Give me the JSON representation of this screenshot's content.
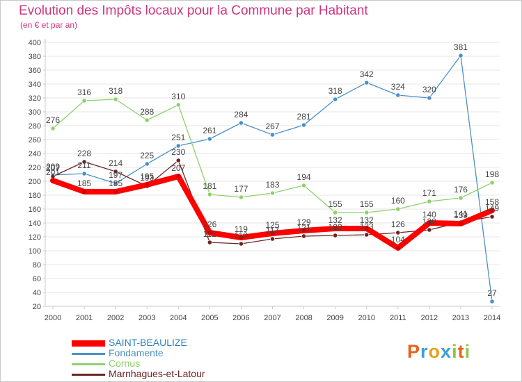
{
  "header": {
    "title": "Evolution des Impôts locaux pour la Commune par Habitant",
    "subtitle": "(en € et par an)"
  },
  "logo": {
    "letters": [
      "P",
      "r",
      "o",
      "x",
      "i",
      "t",
      "i"
    ],
    "colors": [
      "#e8621a",
      "#3aa0da",
      "#e8a21a",
      "#3aa0da",
      "#8cc63f",
      "#e8621a",
      "#8cc63f"
    ]
  },
  "colors": {
    "title": "#d1347e",
    "axis": "#c8c8c8",
    "grid": "#e6e6e6",
    "tick_label": "#444444",
    "value_label": "#444444"
  },
  "chart_data": {
    "type": "line",
    "x": [
      "2000",
      "2001",
      "2002",
      "2003",
      "2004",
      "2005",
      "2006",
      "2007",
      "2008",
      "2009",
      "2010",
      "2011",
      "2012",
      "2013",
      "2014"
    ],
    "ylim": [
      20,
      400
    ],
    "yticks": [
      20,
      40,
      60,
      80,
      100,
      120,
      140,
      160,
      180,
      200,
      220,
      240,
      260,
      280,
      300,
      320,
      340,
      360,
      380,
      400
    ],
    "grid": "horizontal",
    "legend_position": "bottom-left",
    "series": [
      {
        "name": "SAINT-BEAULIZE",
        "color": "#ff0000",
        "values": [
          201,
          185,
          185,
          195,
          207,
          126,
          119,
          125,
          129,
          132,
          132,
          104,
          140,
          139,
          158
        ],
        "labels": [
          "201",
          "185",
          "185",
          "195",
          "207",
          "126",
          "119",
          "125",
          "129",
          "132",
          "132",
          "104",
          "140",
          "139",
          "158"
        ],
        "thick": true
      },
      {
        "name": "Fondamente",
        "color": "#4b90c8",
        "values": [
          209,
          211,
          197,
          225,
          251,
          261,
          284,
          267,
          281,
          318,
          342,
          324,
          320,
          381,
          27
        ],
        "labels": [
          "209",
          "211",
          "197",
          "225",
          "251",
          "261",
          "284",
          "267",
          "281",
          "318",
          "342",
          "324",
          "320",
          "381",
          "27"
        ]
      },
      {
        "name": "Cornus",
        "color": "#8ed16a",
        "values": [
          276,
          316,
          318,
          288,
          310,
          181,
          177,
          183,
          194,
          155,
          155,
          160,
          171,
          176,
          198
        ],
        "labels": [
          "276",
          "316",
          "318",
          "288",
          "310",
          "181",
          "177",
          "183",
          "194",
          "155",
          "155",
          "160",
          "171",
          "176",
          "198"
        ]
      },
      {
        "name": "Marnhagues-et-Latour",
        "color": "#6e2424",
        "values": [
          207,
          228,
          214,
          193,
          230,
          112,
          110,
          117,
          121,
          122,
          123,
          126,
          130,
          141,
          149
        ],
        "labels": [
          "207",
          "228",
          "214",
          "193",
          "230",
          "112",
          "110",
          "117",
          "121",
          "122",
          "123",
          "126",
          "130",
          "141",
          "149"
        ]
      }
    ]
  }
}
